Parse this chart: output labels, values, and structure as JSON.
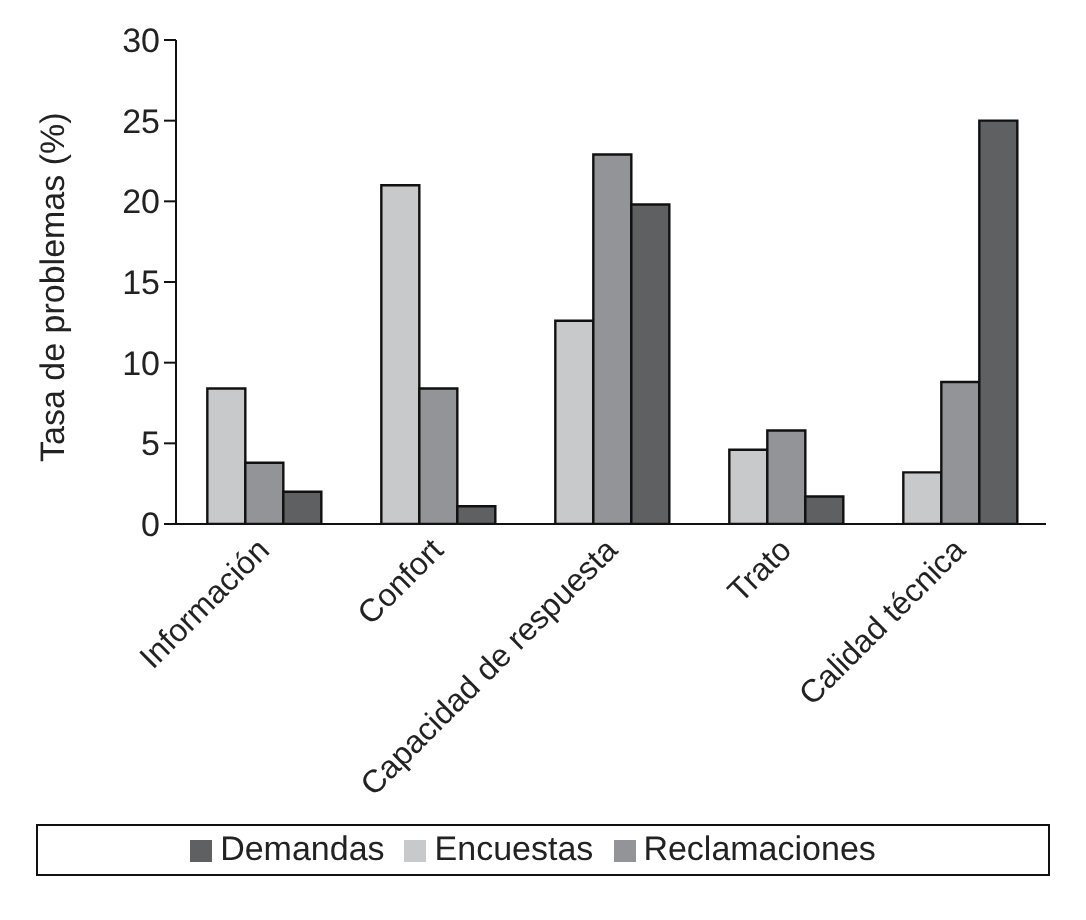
{
  "chart_data": {
    "type": "bar",
    "ylabel": "Tasa de problemas (%)",
    "categories": [
      "Información",
      "Confort",
      "Capacidad de respuesta",
      "Trato",
      "Calidad técnica"
    ],
    "series": [
      {
        "name": "Encuestas",
        "color": "#c8c9cb",
        "values": [
          8.4,
          21,
          12.6,
          4.6,
          3.2
        ]
      },
      {
        "name": "Reclamaciones",
        "color": "#929497",
        "values": [
          3.8,
          8.4,
          22.9,
          5.8,
          8.8
        ]
      },
      {
        "name": "Demandas",
        "color": "#5f6062",
        "values": [
          2.0,
          1.1,
          19.8,
          1.7,
          25.0
        ]
      }
    ],
    "ylim": [
      0,
      30
    ],
    "yticks": [
      0,
      5,
      10,
      15,
      20,
      25,
      30
    ],
    "grid": false,
    "legend": "bottom"
  }
}
